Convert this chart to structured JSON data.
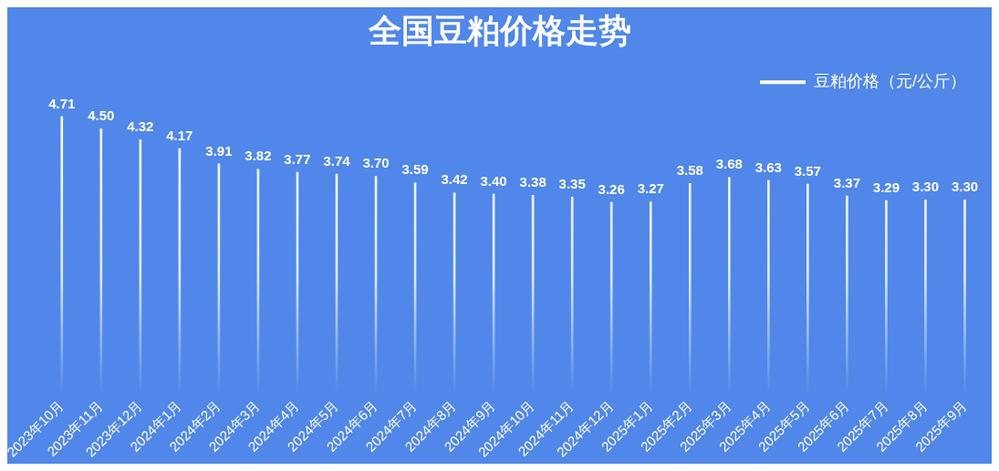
{
  "chart_data": {
    "type": "bar",
    "title": "全国豆粕价格走势",
    "categories": [
      "2023年10月",
      "2023年11月",
      "2023年12月",
      "2024年1月",
      "2024年2月",
      "2024年3月",
      "2024年4月",
      "2024年5月",
      "2024年6月",
      "2024年7月",
      "2024年8月",
      "2024年9月",
      "2024年10月",
      "2024年11月",
      "2024年12月",
      "2025年1月",
      "2025年2月",
      "2025年3月",
      "2025年4月",
      "2025年5月",
      "2025年6月",
      "2025年7月",
      "2025年8月",
      "2025年9月"
    ],
    "series": [
      {
        "name": "豆粕价格（元/公斤）",
        "color": "#ffffff",
        "values": [
          4.71,
          4.5,
          4.32,
          4.17,
          3.91,
          3.82,
          3.77,
          3.74,
          3.7,
          3.59,
          3.42,
          3.4,
          3.38,
          3.35,
          3.26,
          3.27,
          3.58,
          3.68,
          3.63,
          3.57,
          3.37,
          3.29,
          3.3,
          3.3
        ],
        "value_labels": [
          "4.71",
          "4.50",
          "4.32",
          "4.17",
          "3.91",
          "3.82",
          "3.77",
          "3.74",
          "3.70",
          "3.59",
          "3.42",
          "3.40",
          "3.38",
          "3.35",
          "3.26",
          "3.27",
          "3.58",
          "3.68",
          "3.63",
          "3.57",
          "3.37",
          "3.29",
          "3.30",
          "3.30"
        ]
      }
    ],
    "legend": "top right",
    "grid": false,
    "tick_labels": "x"
  }
}
